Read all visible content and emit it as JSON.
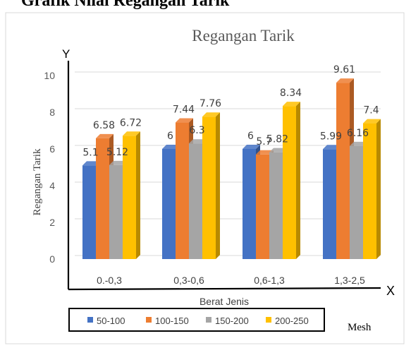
{
  "heading": "Grafik Nilai  Regangan Tarik",
  "mesh_label": "Mesh",
  "chart_data": {
    "type": "bar",
    "title": "Regangan Tarik",
    "xlabel": "Berat Jenis",
    "ylabel": "Regangan  Tarik",
    "x_axis_letter": "X",
    "y_axis_letter": "Y",
    "categories": [
      "0.-0,3",
      "0,3-0,6",
      "0,6-1,3",
      "1,3-2,5"
    ],
    "series": [
      {
        "name": "50-100",
        "color": "#4472C4",
        "values": [
          5.1,
          6,
          6,
          5.99
        ]
      },
      {
        "name": "100-150",
        "color": "#ED7D31",
        "values": [
          6.58,
          7.44,
          5.7,
          9.61
        ]
      },
      {
        "name": "150-200",
        "color": "#A5A5A5",
        "values": [
          5.12,
          6.3,
          5.82,
          6.16
        ]
      },
      {
        "name": "200-250",
        "color": "#FFC000",
        "values": [
          6.72,
          7.76,
          8.34,
          7.4
        ]
      }
    ],
    "data_labels": [
      [
        "5.1",
        "6",
        "6",
        "5.99"
      ],
      [
        "6.58",
        "7.44",
        "5.7",
        "9.61"
      ],
      [
        "5.12",
        "6.3",
        "5.82",
        "6.16"
      ],
      [
        "6.72",
        "7.76",
        "8.34",
        "7.4"
      ]
    ],
    "yticks": [
      "0",
      "2",
      "4",
      "6",
      "8",
      "10"
    ],
    "ylim": [
      0,
      10
    ],
    "grid": true,
    "legend_position": "bottom"
  }
}
